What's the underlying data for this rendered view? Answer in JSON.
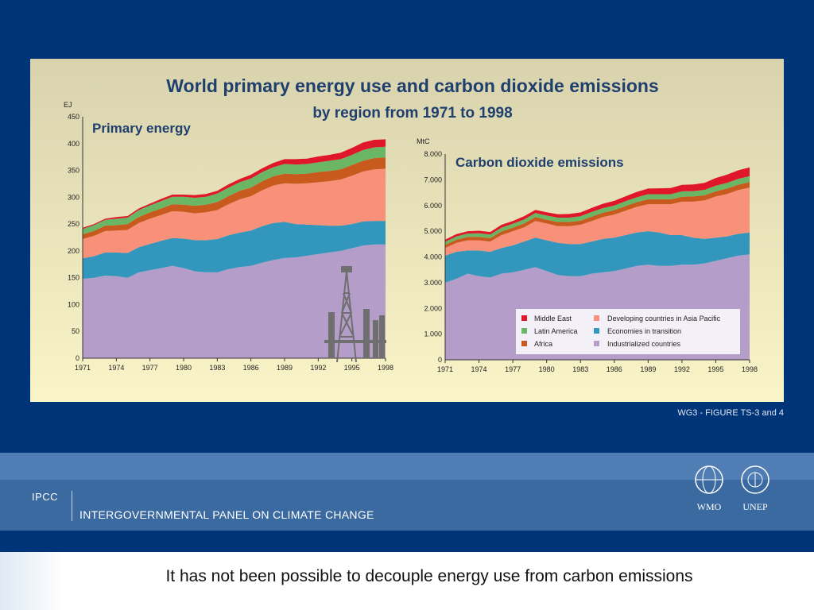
{
  "figure": {
    "title": "World primary energy use and carbon dioxide emissions",
    "subtitle": "by region from 1971 to 1998",
    "credit": "WG3 - FIGURE TS-3 and 4",
    "colors": {
      "background_top": "#d8d3ad",
      "background_bottom": "#faf4c8"
    }
  },
  "legend": [
    {
      "label": "Middle East",
      "color": "#e0162b"
    },
    {
      "label": "Latin America",
      "color": "#6ab664"
    },
    {
      "label": "Africa",
      "color": "#c85a1e"
    },
    {
      "label": "Developing countries in Asia Pacific",
      "color": "#f8907a"
    },
    {
      "label": "Economies in transition",
      "color": "#3296bd"
    },
    {
      "label": "Industrialized countries",
      "color": "#b59dca"
    }
  ],
  "chart_data": [
    {
      "type": "area",
      "stacked": true,
      "title": "Primary  energy",
      "ylabel": "EJ",
      "ylim": [
        0,
        450
      ],
      "yticks": [
        "0",
        "50",
        "100",
        "150",
        "200",
        "250",
        "300",
        "350",
        "400",
        "450"
      ],
      "x": [
        1971,
        1972,
        1973,
        1974,
        1975,
        1976,
        1977,
        1978,
        1979,
        1980,
        1981,
        1982,
        1983,
        1984,
        1985,
        1986,
        1987,
        1988,
        1989,
        1990,
        1991,
        1992,
        1993,
        1994,
        1995,
        1996,
        1997,
        1998
      ],
      "xticks": [
        "1971",
        "1974",
        "1977",
        "1980",
        "1983",
        "1986",
        "1989",
        "1992",
        "1995",
        "1998"
      ],
      "series": [
        {
          "name": "Industrialized countries",
          "color": "#b59dca",
          "values": [
            148,
            150,
            154,
            153,
            150,
            160,
            164,
            168,
            172,
            168,
            162,
            160,
            160,
            166,
            170,
            172,
            178,
            183,
            187,
            188,
            191,
            194,
            197,
            200,
            205,
            210,
            212,
            212
          ]
        },
        {
          "name": "Economies in transition",
          "color": "#3296bd",
          "values": [
            38,
            40,
            43,
            44,
            46,
            47,
            49,
            51,
            52,
            55,
            58,
            60,
            62,
            63,
            64,
            66,
            68,
            69,
            67,
            62,
            58,
            54,
            50,
            47,
            45,
            45,
            44,
            44
          ]
        },
        {
          "name": "Developing countries in Asia Pacific",
          "color": "#f8907a",
          "values": [
            36,
            38,
            40,
            41,
            43,
            45,
            47,
            48,
            50,
            50,
            50,
            52,
            54,
            58,
            62,
            64,
            67,
            70,
            72,
            75,
            77,
            80,
            83,
            86,
            90,
            93,
            96,
            97
          ]
        },
        {
          "name": "Africa",
          "color": "#c85a1e",
          "values": [
            9,
            9,
            10,
            10,
            11,
            11,
            12,
            12,
            13,
            13,
            14,
            14,
            15,
            15,
            16,
            16,
            17,
            17,
            18,
            18,
            18,
            19,
            19,
            19,
            20,
            20,
            21,
            21
          ]
        },
        {
          "name": "Latin America",
          "color": "#6ab664",
          "values": [
            10,
            11,
            11,
            12,
            12,
            13,
            13,
            14,
            14,
            15,
            15,
            15,
            16,
            16,
            16,
            17,
            17,
            17,
            18,
            18,
            18,
            18,
            19,
            19,
            19,
            20,
            20,
            20
          ]
        },
        {
          "name": "Middle East",
          "color": "#e0162b",
          "values": [
            2,
            2,
            2,
            3,
            3,
            3,
            3,
            4,
            4,
            4,
            5,
            5,
            5,
            6,
            6,
            7,
            7,
            8,
            9,
            10,
            10,
            11,
            11,
            12,
            13,
            14,
            14,
            14
          ]
        }
      ]
    },
    {
      "type": "area",
      "stacked": true,
      "title": "Carbon dioxide emissions",
      "ylabel": "MtC",
      "ylim": [
        0,
        8000
      ],
      "yticks": [
        "0",
        "1.000",
        "2.000",
        "3.000",
        "4.000",
        "5.000",
        "6.000",
        "7.000",
        "8.000"
      ],
      "x": [
        1971,
        1972,
        1973,
        1974,
        1975,
        1976,
        1977,
        1978,
        1979,
        1980,
        1981,
        1982,
        1983,
        1984,
        1985,
        1986,
        1987,
        1988,
        1989,
        1990,
        1991,
        1992,
        1993,
        1994,
        1995,
        1996,
        1997,
        1998
      ],
      "xticks": [
        "1971",
        "1974",
        "1977",
        "1980",
        "1983",
        "1986",
        "1989",
        "1992",
        "1995",
        "1998"
      ],
      "series": [
        {
          "name": "Industrialized countries",
          "color": "#b59dca",
          "values": [
            3000,
            3150,
            3350,
            3250,
            3200,
            3350,
            3400,
            3500,
            3600,
            3450,
            3300,
            3250,
            3250,
            3350,
            3400,
            3450,
            3550,
            3650,
            3700,
            3650,
            3650,
            3700,
            3700,
            3750,
            3850,
            3950,
            4050,
            4100
          ]
        },
        {
          "name": "Economies in transition",
          "color": "#3296bd",
          "values": [
            1050,
            1050,
            900,
            1000,
            1000,
            1000,
            1050,
            1100,
            1150,
            1200,
            1250,
            1250,
            1250,
            1250,
            1300,
            1300,
            1300,
            1300,
            1300,
            1300,
            1200,
            1150,
            1050,
            950,
            900,
            850,
            850,
            850
          ]
        },
        {
          "name": "Developing countries in Asia Pacific",
          "color": "#f8907a",
          "values": [
            300,
            350,
            400,
            400,
            400,
            500,
            550,
            550,
            650,
            650,
            650,
            700,
            750,
            800,
            850,
            900,
            950,
            1000,
            1050,
            1100,
            1200,
            1300,
            1400,
            1500,
            1600,
            1650,
            1700,
            1750
          ]
        },
        {
          "name": "Africa",
          "color": "#c85a1e",
          "values": [
            120,
            120,
            130,
            130,
            130,
            140,
            140,
            150,
            150,
            150,
            160,
            160,
            160,
            170,
            170,
            170,
            180,
            180,
            190,
            190,
            190,
            190,
            200,
            200,
            200,
            210,
            210,
            210
          ]
        },
        {
          "name": "Latin America",
          "color": "#6ab664",
          "values": [
            120,
            130,
            130,
            140,
            140,
            150,
            150,
            160,
            160,
            160,
            170,
            170,
            170,
            180,
            180,
            180,
            190,
            190,
            200,
            200,
            200,
            210,
            210,
            210,
            220,
            220,
            230,
            230
          ]
        },
        {
          "name": "Middle East",
          "color": "#e0162b",
          "values": [
            80,
            90,
            90,
            100,
            100,
            110,
            110,
            120,
            120,
            130,
            130,
            140,
            150,
            160,
            170,
            180,
            190,
            210,
            220,
            230,
            240,
            250,
            260,
            270,
            300,
            320,
            330,
            340
          ]
        }
      ]
    }
  ],
  "ipcc_band": {
    "short_name": "IPCC",
    "long_name": "INTERGOVERNMENTAL PANEL ON CLIMATE CHANGE",
    "logo_left": "WMO",
    "logo_right": "UNEP"
  },
  "footer": {
    "caption": "It has not been possible to decouple energy use from carbon emissions"
  }
}
